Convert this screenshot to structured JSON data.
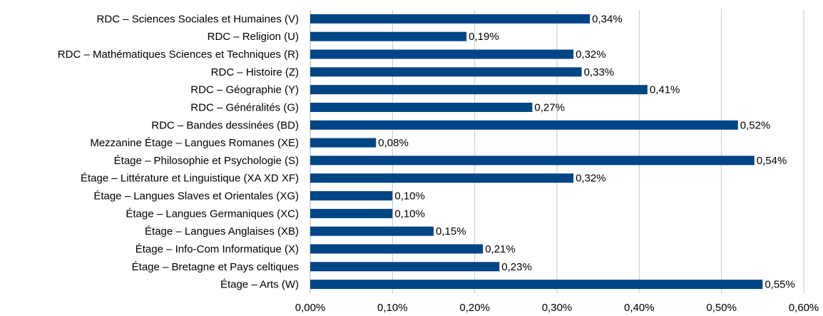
{
  "chart_data": {
    "type": "bar",
    "orientation": "horizontal",
    "categories": [
      "RDC – Sciences Sociales et Humaines (V)",
      "RDC – Religion (U)",
      "RDC – Mathématiques Sciences et Techniques (R)",
      "RDC – Histoire (Z)",
      "RDC – Géographie (Y)",
      "RDC – Généralités (G)",
      "RDC – Bandes dessinées (BD)",
      "Mezzanine Étage – Langues Romanes (XE)",
      "Étage – Philosophie et Psychologie (S)",
      "Étage – Littérature et Linguistique (XA XD XF)",
      "Étage – Langues Slaves et Orientales (XG)",
      "Étage – Langues Germaniques (XC)",
      "Étage – Langues Anglaises (XB)",
      "Étage – Info-Com Informatique (X)",
      "Étage – Bretagne et Pays celtiques",
      "Étage – Arts (W)"
    ],
    "values": [
      0.34,
      0.19,
      0.32,
      0.33,
      0.41,
      0.27,
      0.52,
      0.08,
      0.54,
      0.32,
      0.1,
      0.1,
      0.15,
      0.21,
      0.23,
      0.55
    ],
    "value_labels": [
      "0,34%",
      "0,19%",
      "0,32%",
      "0,33%",
      "0,41%",
      "0,27%",
      "0,52%",
      "0,08%",
      "0,54%",
      "0,32%",
      "0,10%",
      "0,10%",
      "0,15%",
      "0,21%",
      "0,23%",
      "0,55%"
    ],
    "color": "#004586",
    "xlim": [
      0,
      0.6
    ],
    "xticks": [
      {
        "value": 0,
        "label": "0,00%"
      },
      {
        "value": 0.1,
        "label": "0,10%"
      },
      {
        "value": 0.2,
        "label": "0,20%"
      },
      {
        "value": 0.3,
        "label": "0,30%"
      },
      {
        "value": 0.4,
        "label": "0,40%"
      },
      {
        "value": 0.5,
        "label": "0,50%"
      },
      {
        "value": 0.6,
        "label": "0,60%"
      }
    ],
    "grid": true
  }
}
